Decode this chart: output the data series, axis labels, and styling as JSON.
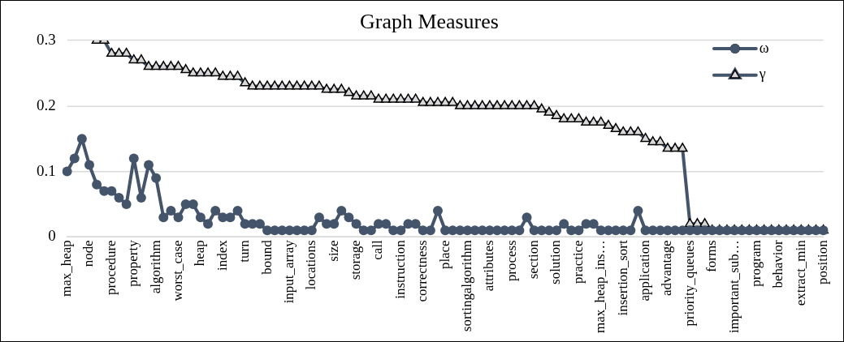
{
  "chart_data": {
    "type": "line",
    "title": "Graph Measures",
    "categories": [
      "max_heap",
      null,
      null,
      "node",
      null,
      null,
      "procedure",
      null,
      null,
      "property",
      null,
      null,
      "algorithm",
      null,
      null,
      "worst_case",
      null,
      null,
      "heap",
      null,
      null,
      "index",
      null,
      null,
      "turn",
      null,
      null,
      "bound",
      null,
      null,
      "input_array",
      null,
      null,
      "locations",
      null,
      null,
      "size",
      null,
      null,
      "storage",
      null,
      null,
      "call",
      null,
      null,
      "instruction",
      null,
      null,
      "correctness",
      null,
      null,
      "place",
      null,
      null,
      "sortingalgorithm",
      null,
      null,
      "attributes",
      null,
      null,
      "process",
      null,
      null,
      "section",
      null,
      null,
      "solution",
      null,
      null,
      "practice",
      null,
      null,
      "max_heap_ins…",
      null,
      null,
      "insertion_sort",
      null,
      null,
      "application",
      null,
      null,
      "advantage",
      null,
      null,
      "priority_queues",
      null,
      null,
      "forms",
      null,
      null,
      "important_sub…",
      null,
      null,
      "program",
      null,
      null,
      "behavior",
      null,
      null,
      "extract_min",
      null,
      null,
      "position"
    ],
    "series": [
      {
        "name": "ω",
        "color": "#44546a",
        "marker": "circle",
        "values": [
          0.1,
          0.12,
          0.15,
          0.11,
          0.08,
          0.07,
          0.07,
          0.06,
          0.05,
          0.12,
          0.06,
          0.11,
          0.09,
          0.03,
          0.04,
          0.03,
          0.05,
          0.05,
          0.03,
          0.02,
          0.04,
          0.03,
          0.03,
          0.04,
          0.02,
          0.02,
          0.02,
          0.01,
          0.01,
          0.01,
          0.01,
          0.01,
          0.01,
          0.01,
          0.03,
          0.02,
          0.02,
          0.04,
          0.03,
          0.02,
          0.01,
          0.01,
          0.02,
          0.02,
          0.01,
          0.01,
          0.02,
          0.02,
          0.01,
          0.01,
          0.04,
          0.01,
          0.01,
          0.01,
          0.01,
          0.01,
          0.01,
          0.01,
          0.01,
          0.01,
          0.01,
          0.01,
          0.03,
          0.01,
          0.01,
          0.01,
          0.01,
          0.02,
          0.01,
          0.01,
          0.02,
          0.02,
          0.01,
          0.01,
          0.01,
          0.01,
          0.01,
          0.04,
          0.01,
          0.01,
          0.01,
          0.01,
          0.01,
          0.01,
          0.01,
          0.01,
          0.01,
          0.01,
          0.01,
          0.01,
          0.01,
          0.01,
          0.01,
          0.01,
          0.01,
          0.01,
          0.01,
          0.01,
          0.01,
          0.01,
          0.01,
          0.01,
          0.01
        ]
      },
      {
        "name": "γ",
        "color": "#44546a",
        "marker": "triangle",
        "values": [
          null,
          null,
          null,
          null,
          0.3,
          0.3,
          0.28,
          0.28,
          0.28,
          0.27,
          0.27,
          0.26,
          0.26,
          0.26,
          0.26,
          0.26,
          0.255,
          0.25,
          0.25,
          0.25,
          0.25,
          0.245,
          0.245,
          0.245,
          0.235,
          0.23,
          0.23,
          0.23,
          0.23,
          0.23,
          0.23,
          0.23,
          0.23,
          0.23,
          0.23,
          0.225,
          0.225,
          0.225,
          0.22,
          0.215,
          0.215,
          0.215,
          0.21,
          0.21,
          0.21,
          0.21,
          0.21,
          0.21,
          0.205,
          0.205,
          0.205,
          0.205,
          0.205,
          0.2,
          0.2,
          0.2,
          0.2,
          0.2,
          0.2,
          0.2,
          0.2,
          0.2,
          0.2,
          0.2,
          0.195,
          0.19,
          0.185,
          0.18,
          0.18,
          0.18,
          0.175,
          0.175,
          0.175,
          0.17,
          0.165,
          0.16,
          0.16,
          0.16,
          0.15,
          0.145,
          0.145,
          0.135,
          0.135,
          0.135,
          0.02,
          0.02,
          0.02,
          0.01,
          0.01,
          0.01,
          0.01,
          0.01,
          0.01,
          0.01,
          0.01,
          0.01,
          0.01,
          0.01,
          0.01,
          0.01,
          0.01,
          0.01,
          0.01
        ]
      }
    ],
    "ylim": [
      0,
      0.3
    ],
    "yticks": [
      0,
      0.1,
      0.2,
      0.3
    ],
    "grid": "y",
    "legend": "top right"
  }
}
